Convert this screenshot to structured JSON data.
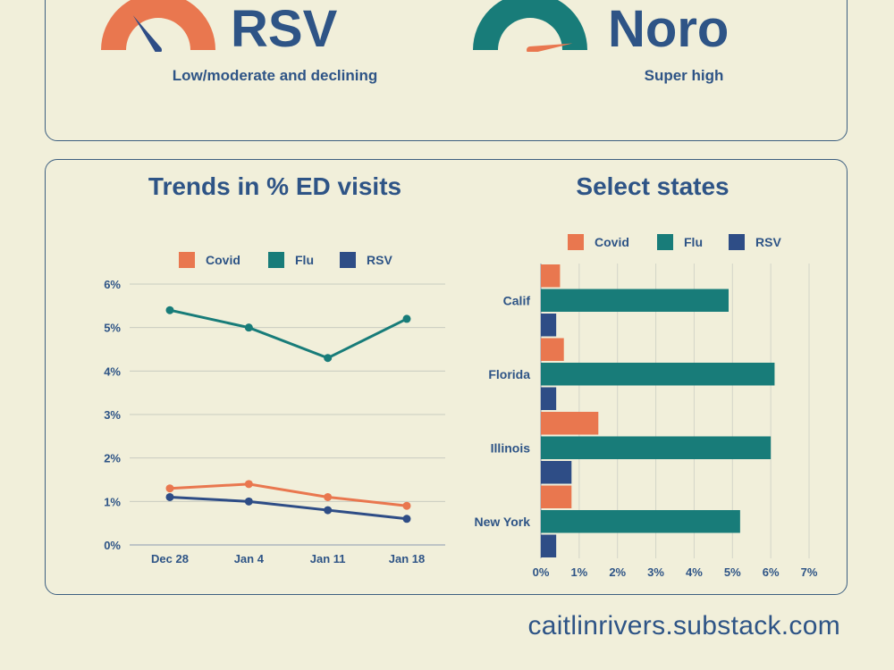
{
  "gauges": [
    {
      "name": "RSV",
      "status": "Low/moderate and declining",
      "color": "#e9774f",
      "level": 0.3
    },
    {
      "name": "Noro",
      "status": "Super high",
      "color": "#187c79",
      "level": 0.95
    }
  ],
  "footer": "caitlinrivers.substack.com",
  "colors": {
    "covid": "#e9774f",
    "flu": "#187c79",
    "rsv": "#2e4d86",
    "text": "#2e5486",
    "background": "#f1efda"
  },
  "chart_data": [
    {
      "type": "line",
      "title": "Trends in % ED visits",
      "x": [
        "Dec 28",
        "Jan 4",
        "Jan 11",
        "Jan 18"
      ],
      "series": [
        {
          "name": "Covid",
          "color": "#e9774f",
          "values": [
            1.3,
            1.4,
            1.1,
            0.9
          ]
        },
        {
          "name": "Flu",
          "color": "#187c79",
          "values": [
            5.4,
            5.0,
            4.3,
            5.2
          ]
        },
        {
          "name": "RSV",
          "color": "#2e4d86",
          "values": [
            1.1,
            1.0,
            0.8,
            0.6
          ]
        }
      ],
      "ylim": [
        0,
        6
      ],
      "yticks": [
        "0%",
        "1%",
        "2%",
        "3%",
        "4%",
        "5%",
        "6%"
      ],
      "grid": true,
      "legend": "top"
    },
    {
      "type": "bar",
      "orientation": "horizontal",
      "title": "Select states",
      "categories": [
        "Calif",
        "Florida",
        "Illinois",
        "New York"
      ],
      "series": [
        {
          "name": "Covid",
          "color": "#e9774f",
          "values": [
            0.5,
            0.6,
            1.5,
            0.8
          ]
        },
        {
          "name": "Flu",
          "color": "#187c79",
          "values": [
            4.9,
            6.1,
            6.0,
            5.2
          ]
        },
        {
          "name": "RSV",
          "color": "#2e4d86",
          "values": [
            0.4,
            0.4,
            0.8,
            0.4
          ]
        }
      ],
      "xlim": [
        0,
        7
      ],
      "xticks": [
        "0%",
        "1%",
        "2%",
        "3%",
        "4%",
        "5%",
        "6%",
        "7%"
      ],
      "grid": true,
      "legend": "top"
    }
  ]
}
